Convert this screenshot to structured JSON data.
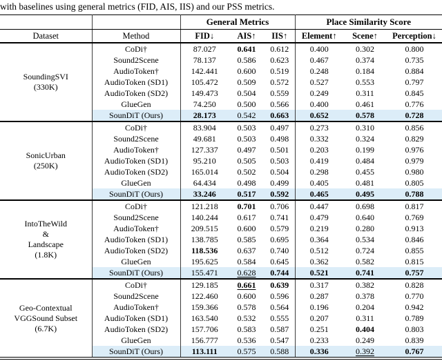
{
  "caption": "with baselines using general metrics (FID, AIS, IIS) and our PSS metrics.",
  "table": {
    "group_general": "General Metrics",
    "group_pss": "Place Similarity Score",
    "col_dataset": "Dataset",
    "col_method": "Method",
    "metric_headers": [
      "FID↓",
      "AIS↑",
      "IIS↑",
      "Element↑",
      "Scene↑",
      "Perception↓"
    ],
    "highlight_color": "#dcedf8",
    "blocks": [
      {
        "dataset_lines": [
          "SoundingSVI",
          "(330K)"
        ],
        "rows": [
          {
            "method": "CoDi†",
            "values": [
              {
                "t": "87.027"
              },
              {
                "t": "0.641",
                "b": true
              },
              {
                "t": "0.612"
              },
              {
                "t": "0.400"
              },
              {
                "t": "0.302"
              },
              {
                "t": "0.800"
              }
            ]
          },
          {
            "method": "Sound2Scene",
            "values": [
              {
                "t": "78.137"
              },
              {
                "t": "0.586"
              },
              {
                "t": "0.623"
              },
              {
                "t": "0.467"
              },
              {
                "t": "0.374"
              },
              {
                "t": "0.735"
              }
            ]
          },
          {
            "method": "AudioToken†",
            "values": [
              {
                "t": "142.441"
              },
              {
                "t": "0.600"
              },
              {
                "t": "0.519"
              },
              {
                "t": "0.248"
              },
              {
                "t": "0.184"
              },
              {
                "t": "0.884"
              }
            ]
          },
          {
            "method": "AudioToken (SD1)",
            "values": [
              {
                "t": "105.472"
              },
              {
                "t": "0.509"
              },
              {
                "t": "0.572"
              },
              {
                "t": "0.527"
              },
              {
                "t": "0.553"
              },
              {
                "t": "0.797"
              }
            ]
          },
          {
            "method": "AudioToken (SD2)",
            "values": [
              {
                "t": "149.473"
              },
              {
                "t": "0.504"
              },
              {
                "t": "0.559"
              },
              {
                "t": "0.249"
              },
              {
                "t": "0.311"
              },
              {
                "t": "0.845"
              }
            ]
          },
          {
            "method": "GlueGen",
            "values": [
              {
                "t": "74.250"
              },
              {
                "t": "0.500"
              },
              {
                "t": "0.566"
              },
              {
                "t": "0.400"
              },
              {
                "t": "0.461"
              },
              {
                "t": "0.776"
              }
            ]
          },
          {
            "method": "SounDiT (Ours)",
            "highlight": true,
            "values": [
              {
                "t": "28.173",
                "b": true
              },
              {
                "t": "0.542"
              },
              {
                "t": "0.663",
                "b": true
              },
              {
                "t": "0.652",
                "b": true
              },
              {
                "t": "0.578",
                "b": true
              },
              {
                "t": "0.728",
                "b": true
              }
            ]
          }
        ]
      },
      {
        "dataset_lines": [
          "SonicUrban",
          "(250K)"
        ],
        "rows": [
          {
            "method": "CoDi†",
            "values": [
              {
                "t": "83.904"
              },
              {
                "t": "0.503"
              },
              {
                "t": "0.497"
              },
              {
                "t": "0.273"
              },
              {
                "t": "0.310"
              },
              {
                "t": "0.856"
              }
            ]
          },
          {
            "method": "Sound2Scene",
            "values": [
              {
                "t": "49.681"
              },
              {
                "t": "0.503"
              },
              {
                "t": "0.498"
              },
              {
                "t": "0.332"
              },
              {
                "t": "0.324"
              },
              {
                "t": "0.829"
              }
            ]
          },
          {
            "method": "AudioToken†",
            "values": [
              {
                "t": "127.337"
              },
              {
                "t": "0.497"
              },
              {
                "t": "0.501"
              },
              {
                "t": "0.203"
              },
              {
                "t": "0.199"
              },
              {
                "t": "0.976"
              }
            ]
          },
          {
            "method": "AudioToken (SD1)",
            "values": [
              {
                "t": "95.210"
              },
              {
                "t": "0.505"
              },
              {
                "t": "0.503"
              },
              {
                "t": "0.419"
              },
              {
                "t": "0.484"
              },
              {
                "t": "0.979"
              }
            ]
          },
          {
            "method": "AudioToken (SD2)",
            "values": [
              {
                "t": "165.014"
              },
              {
                "t": "0.502"
              },
              {
                "t": "0.504"
              },
              {
                "t": "0.298"
              },
              {
                "t": "0.455"
              },
              {
                "t": "0.980"
              }
            ]
          },
          {
            "method": "GlueGen",
            "values": [
              {
                "t": "64.434"
              },
              {
                "t": "0.498"
              },
              {
                "t": "0.499"
              },
              {
                "t": "0.405"
              },
              {
                "t": "0.481"
              },
              {
                "t": "0.805"
              }
            ]
          },
          {
            "method": "SounDiT (Ours)",
            "highlight": true,
            "values": [
              {
                "t": "33.246",
                "b": true
              },
              {
                "t": "0.517",
                "b": true
              },
              {
                "t": "0.592",
                "b": true
              },
              {
                "t": "0.465",
                "b": true
              },
              {
                "t": "0.495",
                "b": true
              },
              {
                "t": "0.788",
                "b": true
              }
            ]
          }
        ]
      },
      {
        "dataset_lines": [
          "IntoTheWild",
          "&",
          "Landscape",
          "(1.8K)"
        ],
        "rows": [
          {
            "method": "CoDi†",
            "values": [
              {
                "t": "121.218"
              },
              {
                "t": "0.701",
                "b": true
              },
              {
                "t": "0.706"
              },
              {
                "t": "0.447"
              },
              {
                "t": "0.698"
              },
              {
                "t": "0.817"
              }
            ]
          },
          {
            "method": "Sound2Scene",
            "values": [
              {
                "t": "140.244"
              },
              {
                "t": "0.617"
              },
              {
                "t": "0.741"
              },
              {
                "t": "0.479"
              },
              {
                "t": "0.640"
              },
              {
                "t": "0.769"
              }
            ]
          },
          {
            "method": "AudioToken†",
            "values": [
              {
                "t": "209.515"
              },
              {
                "t": "0.600"
              },
              {
                "t": "0.579"
              },
              {
                "t": "0.219"
              },
              {
                "t": "0.280"
              },
              {
                "t": "0.913"
              }
            ]
          },
          {
            "method": "AudioToken (SD1)",
            "values": [
              {
                "t": "138.785"
              },
              {
                "t": "0.585"
              },
              {
                "t": "0.695"
              },
              {
                "t": "0.364"
              },
              {
                "t": "0.534"
              },
              {
                "t": "0.846"
              }
            ]
          },
          {
            "method": "AudioToken (SD2)",
            "values": [
              {
                "t": "118.536",
                "b": true
              },
              {
                "t": "0.637"
              },
              {
                "t": "0.740"
              },
              {
                "t": "0.512"
              },
              {
                "t": "0.724"
              },
              {
                "t": "0.855"
              }
            ]
          },
          {
            "method": "GlueGen",
            "values": [
              {
                "t": "195.625"
              },
              {
                "t": "0.584"
              },
              {
                "t": "0.645"
              },
              {
                "t": "0.362"
              },
              {
                "t": "0.582"
              },
              {
                "t": "0.815"
              }
            ]
          },
          {
            "method": "SounDiT (Ours)",
            "highlight": true,
            "values": [
              {
                "t": "155.471"
              },
              {
                "t": "0.628",
                "u": true
              },
              {
                "t": "0.744",
                "b": true
              },
              {
                "t": "0.521",
                "b": true
              },
              {
                "t": "0.741",
                "b": true
              },
              {
                "t": "0.757",
                "b": true
              }
            ]
          }
        ]
      },
      {
        "dataset_lines": [
          "Geo-Contextual",
          "VGGSound Subset",
          "(6.7K)"
        ],
        "rows": [
          {
            "method": "CoDi†",
            "values": [
              {
                "t": "129.185"
              },
              {
                "t": "0.661",
                "b": true,
                "u": true
              },
              {
                "t": "0.639",
                "b": true
              },
              {
                "t": "0.317"
              },
              {
                "t": "0.382"
              },
              {
                "t": "0.828"
              }
            ]
          },
          {
            "method": "Sound2Scene",
            "values": [
              {
                "t": "122.460"
              },
              {
                "t": "0.600"
              },
              {
                "t": "0.596"
              },
              {
                "t": "0.287"
              },
              {
                "t": "0.378"
              },
              {
                "t": "0.770"
              }
            ]
          },
          {
            "method": "AudioToken†",
            "values": [
              {
                "t": "159.366"
              },
              {
                "t": "0.578"
              },
              {
                "t": "0.564"
              },
              {
                "t": "0.196"
              },
              {
                "t": "0.204"
              },
              {
                "t": "0.942"
              }
            ]
          },
          {
            "method": "AudioToken (SD1)",
            "values": [
              {
                "t": "163.540"
              },
              {
                "t": "0.532"
              },
              {
                "t": "0.555"
              },
              {
                "t": "0.207"
              },
              {
                "t": "0.311"
              },
              {
                "t": "0.789"
              }
            ]
          },
          {
            "method": "AudioToken (SD2)",
            "values": [
              {
                "t": "157.706"
              },
              {
                "t": "0.583"
              },
              {
                "t": "0.587"
              },
              {
                "t": "0.251"
              },
              {
                "t": "0.404",
                "b": true
              },
              {
                "t": "0.803"
              }
            ]
          },
          {
            "method": "GlueGen",
            "values": [
              {
                "t": "156.777"
              },
              {
                "t": "0.536"
              },
              {
                "t": "0.547"
              },
              {
                "t": "0.233"
              },
              {
                "t": "0.249"
              },
              {
                "t": "0.839"
              }
            ]
          },
          {
            "method": "SounDiT (Ours)",
            "highlight": true,
            "values": [
              {
                "t": "113.111",
                "b": true
              },
              {
                "t": "0.575"
              },
              {
                "t": "0.588"
              },
              {
                "t": "0.336",
                "b": true
              },
              {
                "t": "0.392",
                "u": true
              },
              {
                "t": "0.767",
                "b": true
              }
            ]
          }
        ]
      }
    ]
  }
}
